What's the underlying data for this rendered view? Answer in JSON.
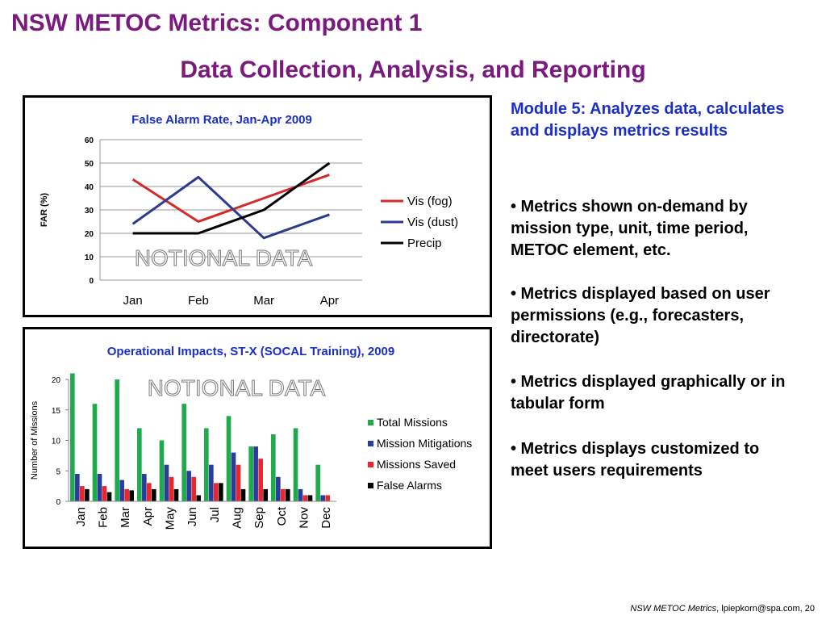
{
  "slide": {
    "title": "NSW METOC Metrics:  Component 1",
    "subtitle": "Data Collection, Analysis, and Reporting",
    "module": "Module 5: Analyzes data, calculates and displays metrics results",
    "bullets": [
      "• Metrics shown on-demand by mission type, unit, time period, METOC element, etc.",
      "• Metrics displayed based on user permissions (e.g., forecasters, directorate)",
      "• Metrics displayed graphically or in tabular form",
      "• Metrics displays customized to meet users requirements"
    ],
    "footer_italic": "NSW METOC Metrics",
    "footer_rest": ", lpiepkorn@spa.com,  20",
    "colors": {
      "title": "#7a1a7f",
      "module_text": "#1a2ec8",
      "chart_title": "#1a2ec8"
    }
  },
  "chart_data": [
    {
      "type": "line",
      "title": "False Alarm Rate, Jan-Apr 2009",
      "xlabel": "",
      "ylabel": "FAR (%)",
      "categories": [
        "Jan",
        "Feb",
        "Mar",
        "Apr"
      ],
      "ylim": [
        0,
        60
      ],
      "yticks": [
        "0",
        "10",
        "20",
        "30",
        "40",
        "50",
        "60"
      ],
      "grid": true,
      "legend": "right",
      "watermark": "NOTIONAL DATA",
      "series": [
        {
          "name": "Vis (fog)",
          "color": "#d42a2a",
          "values": [
            43,
            25,
            35,
            45
          ]
        },
        {
          "name": "Vis (dust)",
          "color": "#2e3a8f",
          "values": [
            24,
            44,
            18,
            28
          ]
        },
        {
          "name": "Precip",
          "color": "#000000",
          "values": [
            20,
            20,
            30,
            50
          ]
        }
      ]
    },
    {
      "type": "bar",
      "title": "Operational Impacts, ST-X (SOCAL Training), 2009",
      "xlabel": "",
      "ylabel": "Number of Missions",
      "categories": [
        "Jan",
        "Feb",
        "Mar",
        "Apr",
        "May",
        "Jun",
        "Jul",
        "Aug",
        "Sep",
        "Oct",
        "Nov",
        "Dec"
      ],
      "ylim": [
        0,
        20
      ],
      "yticks": [
        "0",
        "5",
        "10",
        "15",
        "20"
      ],
      "grid": false,
      "legend": "right",
      "watermark": "NOTIONAL DATA",
      "series": [
        {
          "name": "Total Missions",
          "color": "#1faa4b",
          "values": [
            21,
            16,
            20,
            12,
            10,
            16,
            12,
            14,
            9,
            11,
            12,
            6
          ]
        },
        {
          "name": "Mission Mitigations",
          "color": "#2b3d9c",
          "values": [
            4.5,
            4.5,
            3.5,
            4.5,
            6,
            5,
            6,
            8,
            9,
            4,
            2,
            1
          ]
        },
        {
          "name": "Missions Saved",
          "color": "#e8262b",
          "values": [
            2.5,
            2.5,
            2,
            3,
            4,
            4,
            3,
            6,
            7,
            2,
            1,
            1
          ]
        },
        {
          "name": "False Alarms",
          "color": "#000000",
          "values": [
            2,
            1.5,
            1.8,
            2,
            2,
            1,
            3,
            2,
            2,
            2,
            1,
            0
          ]
        }
      ]
    }
  ]
}
